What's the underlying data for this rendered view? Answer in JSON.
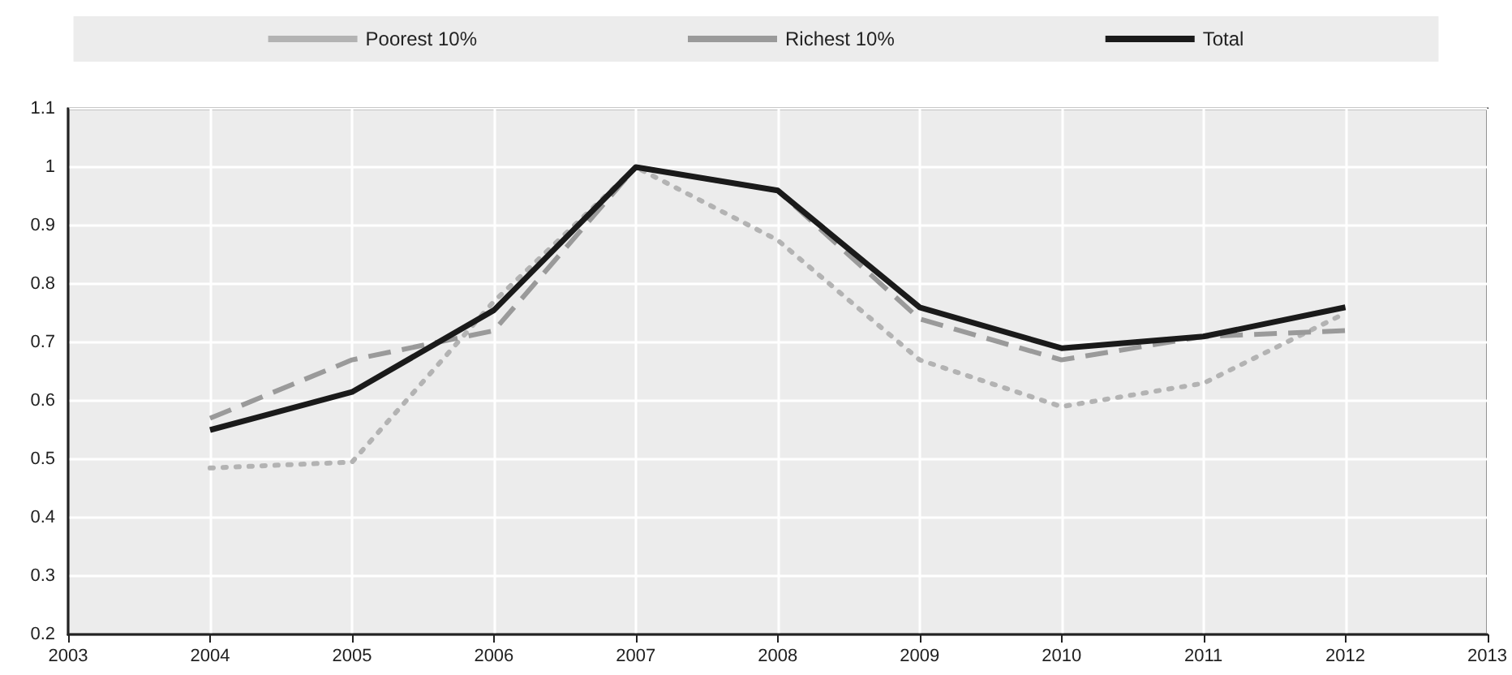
{
  "chart_data": {
    "type": "line",
    "x": [
      2004,
      2005,
      2006,
      2007,
      2008,
      2009,
      2010,
      2011,
      2012
    ],
    "series": [
      {
        "name": "Poorest 10%",
        "color": "#b3b3b3",
        "line_style": "dotted",
        "values": [
          0.485,
          0.495,
          0.77,
          1.0,
          0.875,
          0.67,
          0.59,
          0.63,
          0.75
        ]
      },
      {
        "name": "Richest 10%",
        "color": "#9a9a9a",
        "line_style": "dashed",
        "values": [
          0.57,
          0.67,
          0.72,
          1.0,
          0.96,
          0.74,
          0.67,
          0.71,
          0.72
        ]
      },
      {
        "name": "Total",
        "color": "#1a1a1a",
        "line_style": "solid",
        "values": [
          0.55,
          0.615,
          0.755,
          1.0,
          0.96,
          0.76,
          0.69,
          0.71,
          0.76
        ]
      }
    ],
    "xlim": [
      2003,
      2013
    ],
    "xticks": [
      2003,
      2004,
      2005,
      2006,
      2007,
      2008,
      2009,
      2010,
      2011,
      2012,
      2013
    ],
    "ylim": [
      0.2,
      1.1
    ],
    "yticks": [
      0.2,
      0.3,
      0.4,
      0.5,
      0.6,
      0.7,
      0.8,
      0.9,
      1,
      1.1
    ],
    "grid": true,
    "legend": "top",
    "marker": "none"
  }
}
